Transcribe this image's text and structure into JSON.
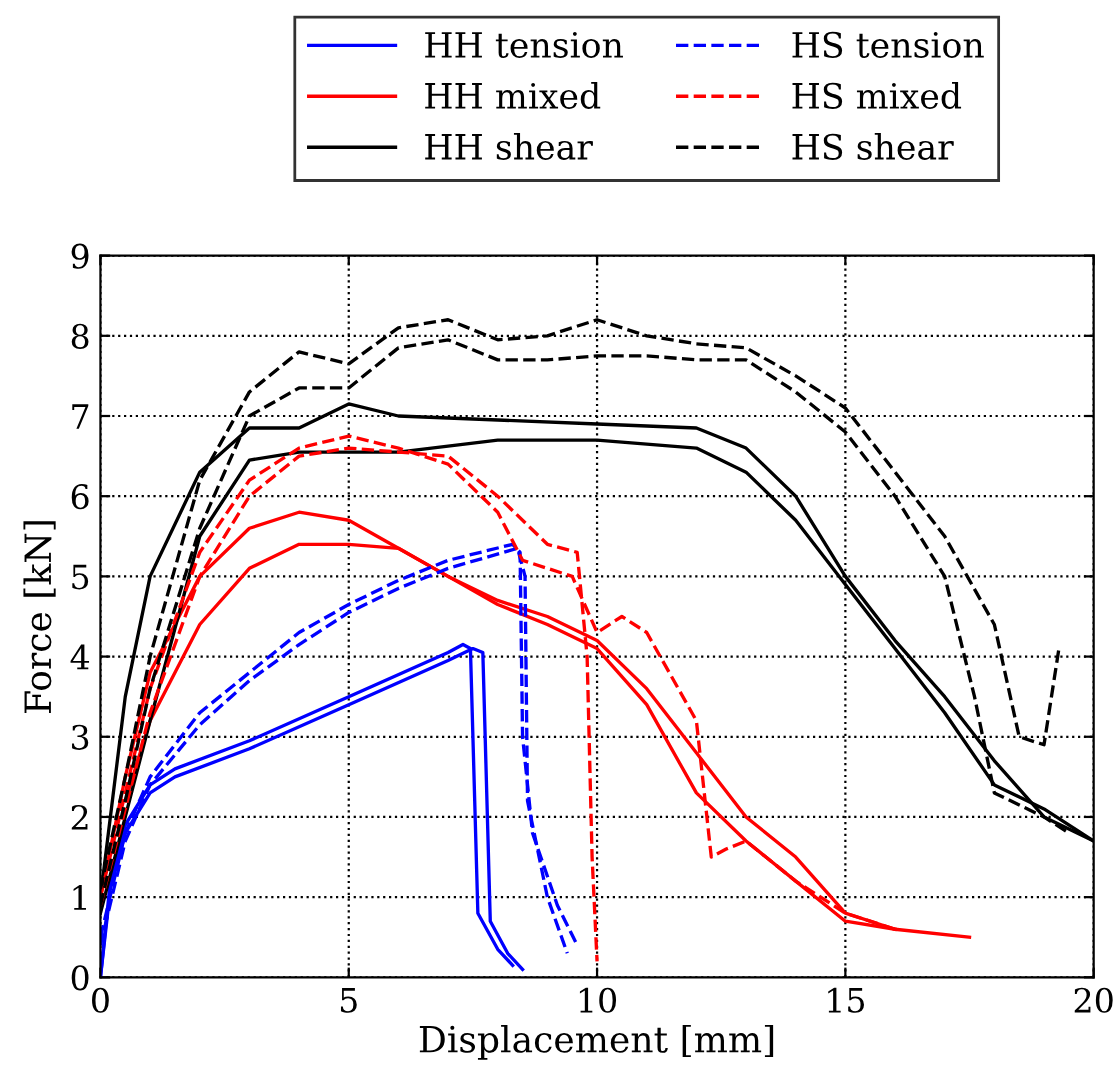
{
  "chart_data": {
    "type": "line",
    "xlabel": "Displacement [mm]",
    "ylabel": "Force [kN]",
    "xlim": [
      0,
      20
    ],
    "ylim": [
      0,
      9
    ],
    "xticks": [
      0,
      5,
      10,
      15,
      20
    ],
    "yticks": [
      0,
      1,
      2,
      3,
      4,
      5,
      6,
      7,
      8,
      9
    ],
    "grid": true,
    "legend": "top",
    "series": [
      {
        "name": "HH tension",
        "color": "#0000ff",
        "line_style": "solid",
        "x": [
          0,
          0.2,
          0.5,
          1,
          1.5,
          3,
          5,
          7,
          7.3,
          7.45,
          7.6,
          8,
          8.3
        ],
        "values": [
          0,
          1.2,
          1.9,
          2.4,
          2.6,
          2.95,
          3.5,
          4.05,
          4.15,
          4.1,
          0.8,
          0.35,
          0.15
        ]
      },
      {
        "color": "#0000ff",
        "line_style": "solid",
        "x": [
          0,
          0.2,
          0.5,
          1,
          1.5,
          3,
          5,
          7,
          7.5,
          7.7,
          7.85,
          8.2,
          8.5
        ],
        "values": [
          0,
          1.1,
          1.8,
          2.3,
          2.5,
          2.85,
          3.4,
          3.95,
          4.1,
          4.05,
          0.7,
          0.3,
          0.1
        ]
      },
      {
        "name": "HH mixed",
        "color": "#ff0000",
        "line_style": "solid",
        "x": [
          0,
          0.5,
          1,
          2,
          3,
          4,
          5,
          6,
          7,
          8,
          9,
          10,
          11,
          12,
          13,
          14,
          15,
          16,
          17.5
        ],
        "values": [
          1.0,
          2.5,
          3.8,
          5.0,
          5.6,
          5.8,
          5.7,
          5.35,
          5.0,
          4.7,
          4.5,
          4.2,
          3.6,
          2.8,
          2.0,
          1.5,
          0.8,
          0.6,
          0.5
        ]
      },
      {
        "color": "#ff0000",
        "line_style": "solid",
        "x": [
          0.5,
          1,
          2,
          3,
          4,
          5,
          6,
          7,
          8,
          9,
          10,
          11,
          12,
          13,
          14,
          15,
          16
        ],
        "values": [
          2.2,
          3.2,
          4.4,
          5.1,
          5.4,
          5.4,
          5.35,
          5.0,
          4.65,
          4.4,
          4.1,
          3.4,
          2.3,
          1.7,
          1.2,
          0.7,
          0.6
        ]
      },
      {
        "name": "HH shear",
        "color": "#000000",
        "line_style": "solid",
        "x": [
          0,
          0.5,
          1,
          2,
          3,
          4,
          5,
          6,
          8,
          10,
          12,
          13,
          14,
          15,
          16,
          17,
          18,
          19,
          20
        ],
        "values": [
          1.0,
          3.5,
          5.0,
          6.3,
          6.85,
          6.85,
          7.15,
          7.0,
          6.95,
          6.9,
          6.85,
          6.6,
          6.0,
          5.0,
          4.2,
          3.5,
          2.7,
          2.0,
          1.7
        ]
      },
      {
        "color": "#000000",
        "line_style": "solid",
        "x": [
          0,
          0.5,
          1,
          2,
          3,
          4,
          5,
          6,
          8,
          10,
          12,
          13,
          14,
          15,
          16,
          17,
          18,
          19,
          20
        ],
        "values": [
          0.8,
          2.0,
          3.2,
          5.5,
          6.45,
          6.55,
          6.55,
          6.55,
          6.7,
          6.7,
          6.6,
          6.3,
          5.7,
          4.9,
          4.1,
          3.3,
          2.4,
          2.1,
          1.7
        ]
      },
      {
        "name": "HS tension",
        "color": "#0000ff",
        "line_style": "dashed",
        "x": [
          0,
          0.5,
          1,
          2,
          3,
          4,
          5,
          6,
          7,
          8.3,
          8.45,
          8.5,
          8.7,
          9.2,
          9.6
        ],
        "values": [
          0.5,
          1.8,
          2.5,
          3.3,
          3.8,
          4.3,
          4.65,
          4.95,
          5.2,
          5.4,
          5.3,
          3.0,
          1.8,
          0.9,
          0.4
        ]
      },
      {
        "color": "#0000ff",
        "line_style": "dashed",
        "x": [
          0,
          0.5,
          1,
          2,
          3,
          4,
          5,
          6,
          7,
          8.4,
          8.55,
          8.6,
          9,
          9.4
        ],
        "values": [
          0.4,
          1.7,
          2.4,
          3.15,
          3.7,
          4.15,
          4.55,
          4.85,
          5.1,
          5.35,
          5.0,
          2.2,
          1.0,
          0.3
        ]
      },
      {
        "name": "HS mixed",
        "color": "#ff0000",
        "line_style": "dashed",
        "x": [
          0,
          0.5,
          1,
          2,
          3,
          4,
          5,
          6,
          7,
          8,
          8.5,
          9.5,
          10,
          10.5,
          11,
          12,
          12.3,
          12.6,
          13,
          14,
          15,
          16
        ],
        "values": [
          1.0,
          2.3,
          3.6,
          5.3,
          6.2,
          6.6,
          6.75,
          6.6,
          6.4,
          5.8,
          5.2,
          5.0,
          4.3,
          4.5,
          4.3,
          3.2,
          1.5,
          1.6,
          1.7,
          1.2,
          0.8,
          0.6
        ]
      },
      {
        "color": "#ff0000",
        "line_style": "dashed",
        "x": [
          0,
          0.5,
          1,
          2,
          3,
          4,
          5,
          6,
          7,
          8,
          9,
          9.6,
          9.8,
          9.9,
          10
        ],
        "values": [
          0.9,
          2.1,
          3.3,
          5.0,
          6.0,
          6.5,
          6.6,
          6.55,
          6.5,
          6.0,
          5.4,
          5.3,
          4.0,
          1.5,
          0.2
        ]
      },
      {
        "name": "HS shear",
        "color": "#000000",
        "line_style": "dashed",
        "x": [
          0,
          0.5,
          1,
          2,
          3,
          4,
          5,
          6,
          7,
          8,
          9,
          10,
          11,
          12,
          13,
          14,
          15,
          16,
          17,
          18,
          18.5,
          19,
          19.3
        ],
        "values": [
          1.1,
          2.5,
          4.0,
          6.2,
          7.3,
          7.8,
          7.65,
          8.1,
          8.2,
          7.95,
          8.0,
          8.2,
          8.0,
          7.9,
          7.85,
          7.5,
          7.1,
          6.3,
          5.5,
          4.4,
          3.0,
          2.9,
          4.1
        ]
      },
      {
        "color": "#000000",
        "line_style": "dashed",
        "x": [
          0,
          0.5,
          1,
          2,
          3,
          4,
          5,
          6,
          7,
          8,
          9,
          10,
          11,
          12,
          13,
          14,
          15,
          16,
          17,
          17.6,
          18,
          19,
          19.5
        ],
        "values": [
          0.9,
          2.2,
          3.6,
          5.6,
          7.0,
          7.35,
          7.35,
          7.85,
          7.95,
          7.7,
          7.7,
          7.75,
          7.75,
          7.7,
          7.7,
          7.3,
          6.8,
          6.0,
          5.0,
          3.5,
          2.3,
          2.0,
          1.8
        ]
      }
    ]
  }
}
